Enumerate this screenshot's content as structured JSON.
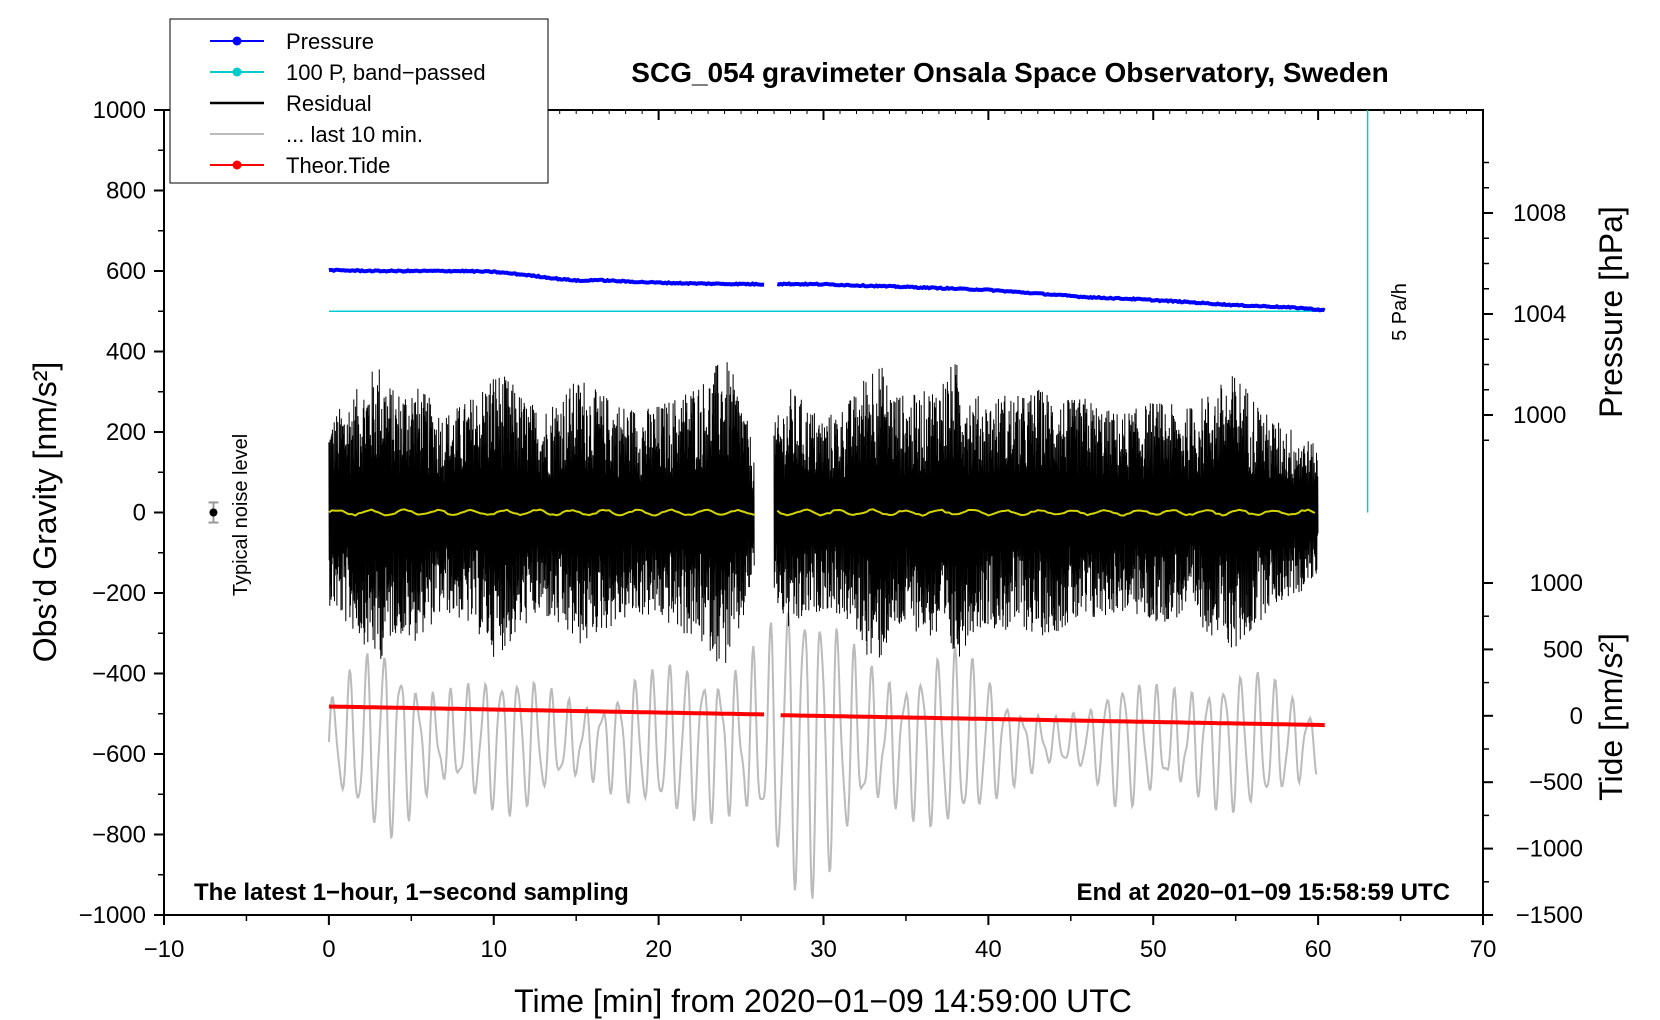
{
  "chart_data": {
    "type": "line",
    "title": "SCG_054 gravimeter Onsala Space Observatory, Sweden",
    "xlabel": "Time [min] from 2020−01−09 14:59:00 UTC",
    "ylabel": "Obs’d Gravity [nm/s²]",
    "y2label": "Pressure [hPa]",
    "y3label": "Tide [nm/s²]",
    "xlim": [
      -10,
      70
    ],
    "ylim": [
      -1000,
      1000
    ],
    "y2lim_shown": [
      1000,
      1008
    ],
    "y3lim": [
      -1500,
      1000
    ],
    "x_ticks": [
      -10,
      0,
      10,
      20,
      30,
      40,
      50,
      60,
      70
    ],
    "x_tick_labels": [
      "−10",
      "0",
      "10",
      "20",
      "30",
      "40",
      "50",
      "60",
      "70"
    ],
    "y_ticks": [
      1000,
      800,
      600,
      400,
      200,
      0,
      -200,
      -400,
      -600,
      -800,
      -1000
    ],
    "y_tick_labels": [
      "1000",
      "800",
      "600",
      "400",
      "200",
      "0",
      "−200",
      "−400",
      "−600",
      "−800",
      "−1000"
    ],
    "y2_ticks": [
      1008,
      1004,
      1000
    ],
    "y2_tick_labels": [
      "1008",
      "1004",
      "1000"
    ],
    "y3_ticks": [
      1000,
      500,
      0,
      -500,
      -1000,
      -1500
    ],
    "y3_tick_labels": [
      "1000",
      "500",
      "0",
      "−500",
      "−1000",
      "−1500"
    ],
    "legend": {
      "position": "top-left",
      "entries": [
        {
          "label": "Pressure",
          "color": "#0000ff",
          "marker": true
        },
        {
          "label": "100 P, band−passed",
          "color": "#00cccc",
          "marker": true
        },
        {
          "label": "Residual",
          "color": "#000000",
          "marker": false
        },
        {
          "label": "... last 10 min.",
          "color": "#bbbbbb",
          "marker": false
        },
        {
          "label": "Theor.Tide",
          "color": "#ff0000",
          "marker": true
        }
      ]
    },
    "annotations": {
      "bottom_left": "The latest 1−hour, 1−second sampling",
      "bottom_right": "End at 2020−01−09 15:58:59 UTC",
      "noise_label": "Typical noise level",
      "scale_label": "5 Pa/h"
    },
    "noise_marker": {
      "x": -7,
      "y": 0,
      "err": 25
    },
    "scale_bar": {
      "x": 63,
      "y_from": 0,
      "y_to": 1000
    },
    "series": [
      {
        "name": "Pressure",
        "color": "#0000ff",
        "y_units": "obs gravity axis",
        "x_range": [
          0,
          60.5
        ],
        "gap": [
          26.5,
          27.2
        ],
        "points": [
          [
            0,
            602
          ],
          [
            3,
            600
          ],
          [
            6,
            600
          ],
          [
            8,
            600
          ],
          [
            10,
            598
          ],
          [
            12,
            590
          ],
          [
            14,
            580
          ],
          [
            15.5,
            575
          ],
          [
            16,
            578
          ],
          [
            18,
            574
          ],
          [
            20,
            571
          ],
          [
            22,
            569
          ],
          [
            24,
            568
          ],
          [
            26.5,
            567
          ],
          [
            27.2,
            568
          ],
          [
            30,
            567
          ],
          [
            33,
            563
          ],
          [
            36,
            559
          ],
          [
            40,
            553
          ],
          [
            43,
            544
          ],
          [
            46,
            535
          ],
          [
            49,
            530
          ],
          [
            52,
            523
          ],
          [
            55,
            515
          ],
          [
            57,
            512
          ],
          [
            59,
            508
          ],
          [
            60.5,
            502
          ]
        ]
      },
      {
        "name": "100 P, band−passed",
        "color": "#00cccc",
        "x_range": [
          0,
          60
        ],
        "value": 500
      },
      {
        "name": "Residual",
        "color": "#000000",
        "x_range": [
          0,
          60
        ],
        "gap": [
          25.8,
          27.0
        ],
        "envelope": [
          [
            0,
            230
          ],
          [
            1,
            280
          ],
          [
            2,
            320
          ],
          [
            3,
            380
          ],
          [
            4,
            300
          ],
          [
            5,
            330
          ],
          [
            6,
            290
          ],
          [
            7,
            250
          ],
          [
            8,
            270
          ],
          [
            9,
            300
          ],
          [
            10,
            360
          ],
          [
            11,
            330
          ],
          [
            12,
            280
          ],
          [
            13,
            260
          ],
          [
            14,
            300
          ],
          [
            15,
            330
          ],
          [
            15.5,
            340
          ],
          [
            16,
            310
          ],
          [
            17,
            290
          ],
          [
            18,
            270
          ],
          [
            19,
            260
          ],
          [
            20,
            270
          ],
          [
            21,
            290
          ],
          [
            22,
            320
          ],
          [
            23,
            340
          ],
          [
            23.5,
            370
          ],
          [
            24,
            390
          ],
          [
            25,
            300
          ],
          [
            25.8,
            150
          ],
          [
            27,
            220
          ],
          [
            28,
            310
          ],
          [
            29,
            270
          ],
          [
            30,
            240
          ],
          [
            31,
            260
          ],
          [
            32,
            300
          ],
          [
            33,
            390
          ],
          [
            33.5,
            370
          ],
          [
            34,
            320
          ],
          [
            35,
            290
          ],
          [
            36,
            300
          ],
          [
            37,
            330
          ],
          [
            38,
            380
          ],
          [
            39,
            300
          ],
          [
            40,
            280
          ],
          [
            41,
            300
          ],
          [
            42,
            290
          ],
          [
            43,
            310
          ],
          [
            44,
            300
          ],
          [
            45,
            280
          ],
          [
            46,
            290
          ],
          [
            47,
            260
          ],
          [
            48,
            250
          ],
          [
            49,
            260
          ],
          [
            50,
            280
          ],
          [
            51,
            270
          ],
          [
            52,
            260
          ],
          [
            53,
            290
          ],
          [
            54,
            320
          ],
          [
            55,
            350
          ],
          [
            56,
            300
          ],
          [
            57,
            240
          ],
          [
            58,
            220
          ],
          [
            59,
            200
          ],
          [
            60,
            160
          ]
        ]
      },
      {
        "name": "... last 10 min.",
        "color": "#bbbbbb",
        "center": -570,
        "x_range": [
          0,
          60
        ],
        "envelope": [
          [
            0,
            120
          ],
          [
            2,
            180
          ],
          [
            4,
            240
          ],
          [
            6,
            200
          ],
          [
            8,
            180
          ],
          [
            10,
            160
          ],
          [
            12,
            150
          ],
          [
            14,
            140
          ],
          [
            16,
            150
          ],
          [
            18,
            170
          ],
          [
            20,
            150
          ],
          [
            22,
            200
          ],
          [
            24,
            280
          ],
          [
            26,
            320
          ],
          [
            28,
            340
          ],
          [
            30,
            320
          ],
          [
            32,
            280
          ],
          [
            34,
            250
          ],
          [
            36,
            220
          ],
          [
            38,
            200
          ],
          [
            40,
            170
          ],
          [
            42,
            140
          ],
          [
            44,
            80
          ],
          [
            46,
            70
          ],
          [
            48,
            150
          ],
          [
            50,
            180
          ],
          [
            52,
            200
          ],
          [
            54,
            180
          ],
          [
            56,
            150
          ],
          [
            58,
            140
          ],
          [
            60,
            110
          ]
        ]
      },
      {
        "name": "Theor.Tide",
        "color": "#ff0000",
        "y3_units": "tide axis",
        "x_range": [
          0,
          60.5
        ],
        "gap": [
          26.5,
          27.2
        ],
        "points": [
          [
            0,
            70
          ],
          [
            26.5,
            10
          ],
          [
            27.2,
            5
          ],
          [
            60.5,
            -70
          ]
        ]
      },
      {
        "name": "Residual (yellow smoothed)",
        "color": "#d4d400",
        "x_range": [
          0,
          60
        ],
        "gap": [
          25.8,
          27.0
        ],
        "value": 0
      }
    ]
  }
}
